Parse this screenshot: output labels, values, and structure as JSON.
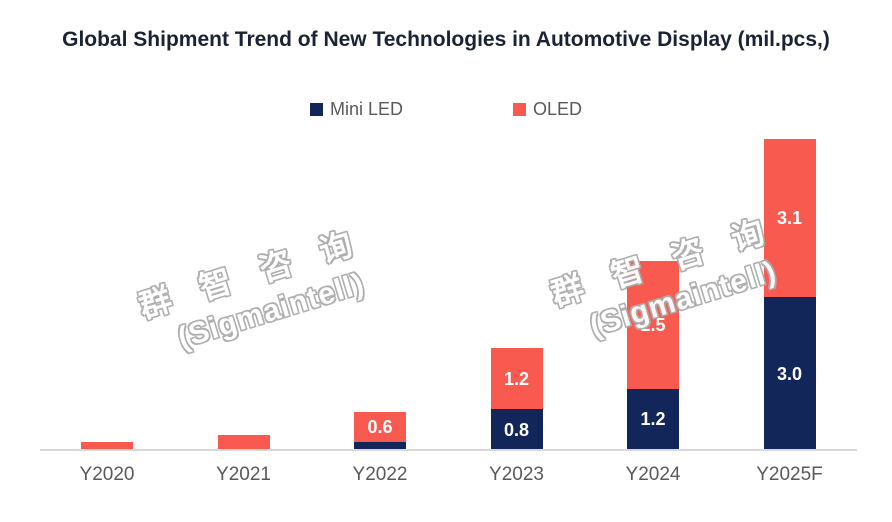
{
  "title": "Global Shipment Trend of New Technologies in Automotive Display (mil.pcs,)",
  "legend": [
    {
      "label": "Mini LED",
      "color": "#12265a"
    },
    {
      "label": "OLED",
      "color": "#f85a50"
    }
  ],
  "watermark": {
    "line1": "群 智 咨 询",
    "line2": "(Sigmaintell)"
  },
  "colors": {
    "title_text": "#1b2233",
    "axis_line": "#d9d9d9",
    "axis_label_text": "#595959",
    "bar_label_text": "#ffffff",
    "mini_led": "#12265a",
    "oled": "#f85a50"
  },
  "chart_data": {
    "type": "bar",
    "subtype": "stacked-column",
    "title": "Global Shipment Trend of New Technologies in Automotive Display (mil.pcs,)",
    "categories": [
      "Y2020",
      "Y2021",
      "Y2022",
      "Y2023",
      "Y2024",
      "Y2025F"
    ],
    "series": [
      {
        "name": "Mini LED",
        "color": "#12265a",
        "values": [
          0,
          0,
          0.15,
          0.8,
          1.2,
          3.0
        ],
        "data_labels": [
          "",
          "",
          "",
          "0.8",
          "1.2",
          "3.0"
        ]
      },
      {
        "name": "OLED",
        "color": "#f85a50",
        "values": [
          0.15,
          0.3,
          0.6,
          1.2,
          2.5,
          3.1
        ],
        "data_labels": [
          "",
          "",
          "0.6",
          "1.2",
          "2.5",
          "3.1"
        ]
      }
    ],
    "xlabel": "",
    "ylabel": "",
    "ylim": [
      0,
      6.5
    ],
    "grid": false,
    "y_axis_visible": false,
    "legend_position": "top-center"
  }
}
